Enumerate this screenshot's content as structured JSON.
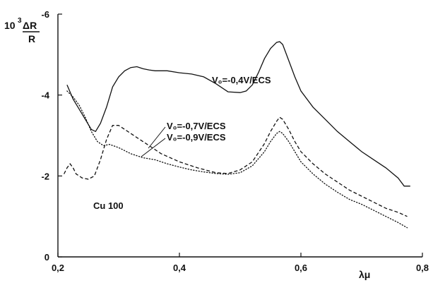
{
  "chart_data": {
    "type": "line",
    "xlabel": "λμ",
    "ylabel_prefix": "10",
    "ylabel_exp": "3",
    "ylabel_num": "ΔR",
    "ylabel_den": "R",
    "xlim": [
      0.2,
      0.8
    ],
    "ylim": [
      0,
      -6
    ],
    "x_ticks": [
      {
        "value": 0.2,
        "label": "0,2"
      },
      {
        "value": 0.4,
        "label": "0,4"
      },
      {
        "value": 0.6,
        "label": "0,6"
      },
      {
        "value": 0.8,
        "label": "0,8"
      }
    ],
    "y_ticks": [
      {
        "value": 0,
        "label": "0"
      },
      {
        "value": -2,
        "label": "-2"
      },
      {
        "value": -4,
        "label": "-4"
      },
      {
        "value": -6,
        "label": "-6"
      }
    ],
    "annotations": {
      "sample": "Cu 100",
      "v04": "V₀=-0,4V/ECS",
      "v07": "V₀=-0,7V/ECS",
      "v09": "V₀=-0,9V/ECS"
    },
    "series": [
      {
        "style": "solid",
        "points": [
          [
            0.215,
            -4.25
          ],
          [
            0.225,
            -3.9
          ],
          [
            0.235,
            -3.65
          ],
          [
            0.245,
            -3.4
          ],
          [
            0.255,
            -3.15
          ],
          [
            0.262,
            -3.1
          ],
          [
            0.27,
            -3.3
          ],
          [
            0.28,
            -3.7
          ],
          [
            0.29,
            -4.2
          ],
          [
            0.3,
            -4.45
          ],
          [
            0.31,
            -4.6
          ],
          [
            0.32,
            -4.68
          ],
          [
            0.33,
            -4.7
          ],
          [
            0.34,
            -4.65
          ],
          [
            0.35,
            -4.62
          ],
          [
            0.36,
            -4.6
          ],
          [
            0.38,
            -4.6
          ],
          [
            0.4,
            -4.55
          ],
          [
            0.42,
            -4.52
          ],
          [
            0.44,
            -4.45
          ],
          [
            0.46,
            -4.28
          ],
          [
            0.48,
            -4.08
          ],
          [
            0.5,
            -4.06
          ],
          [
            0.51,
            -4.1
          ],
          [
            0.52,
            -4.25
          ],
          [
            0.53,
            -4.55
          ],
          [
            0.54,
            -4.9
          ],
          [
            0.55,
            -5.15
          ],
          [
            0.56,
            -5.3
          ],
          [
            0.565,
            -5.32
          ],
          [
            0.57,
            -5.25
          ],
          [
            0.58,
            -4.85
          ],
          [
            0.59,
            -4.45
          ],
          [
            0.6,
            -4.1
          ],
          [
            0.62,
            -3.7
          ],
          [
            0.64,
            -3.4
          ],
          [
            0.66,
            -3.1
          ],
          [
            0.68,
            -2.85
          ],
          [
            0.7,
            -2.6
          ],
          [
            0.72,
            -2.4
          ],
          [
            0.74,
            -2.2
          ],
          [
            0.76,
            -1.95
          ],
          [
            0.77,
            -1.75
          ],
          [
            0.78,
            -1.75
          ]
        ]
      },
      {
        "style": "dashed",
        "points": [
          [
            0.21,
            -2.05
          ],
          [
            0.215,
            -2.2
          ],
          [
            0.22,
            -2.3
          ],
          [
            0.225,
            -2.2
          ],
          [
            0.23,
            -2.05
          ],
          [
            0.24,
            -1.95
          ],
          [
            0.25,
            -1.92
          ],
          [
            0.26,
            -2.0
          ],
          [
            0.27,
            -2.4
          ],
          [
            0.28,
            -2.9
          ],
          [
            0.29,
            -3.25
          ],
          [
            0.3,
            -3.25
          ],
          [
            0.31,
            -3.15
          ],
          [
            0.33,
            -2.95
          ],
          [
            0.35,
            -2.75
          ],
          [
            0.37,
            -2.55
          ],
          [
            0.4,
            -2.35
          ],
          [
            0.43,
            -2.2
          ],
          [
            0.46,
            -2.08
          ],
          [
            0.48,
            -2.06
          ],
          [
            0.5,
            -2.15
          ],
          [
            0.52,
            -2.35
          ],
          [
            0.54,
            -2.8
          ],
          [
            0.55,
            -3.1
          ],
          [
            0.56,
            -3.35
          ],
          [
            0.565,
            -3.45
          ],
          [
            0.57,
            -3.4
          ],
          [
            0.58,
            -3.15
          ],
          [
            0.59,
            -2.85
          ],
          [
            0.6,
            -2.6
          ],
          [
            0.62,
            -2.3
          ],
          [
            0.64,
            -2.05
          ],
          [
            0.66,
            -1.85
          ],
          [
            0.68,
            -1.65
          ],
          [
            0.7,
            -1.5
          ],
          [
            0.72,
            -1.35
          ],
          [
            0.74,
            -1.2
          ],
          [
            0.76,
            -1.1
          ],
          [
            0.775,
            -1.0
          ]
        ]
      },
      {
        "style": "dotted",
        "points": [
          [
            0.215,
            -4.1
          ],
          [
            0.225,
            -3.95
          ],
          [
            0.235,
            -3.75
          ],
          [
            0.245,
            -3.45
          ],
          [
            0.255,
            -3.1
          ],
          [
            0.265,
            -2.85
          ],
          [
            0.275,
            -2.75
          ],
          [
            0.285,
            -2.78
          ],
          [
            0.3,
            -2.7
          ],
          [
            0.32,
            -2.55
          ],
          [
            0.34,
            -2.45
          ],
          [
            0.36,
            -2.4
          ],
          [
            0.38,
            -2.3
          ],
          [
            0.4,
            -2.22
          ],
          [
            0.42,
            -2.15
          ],
          [
            0.44,
            -2.1
          ],
          [
            0.46,
            -2.06
          ],
          [
            0.48,
            -2.04
          ],
          [
            0.5,
            -2.08
          ],
          [
            0.52,
            -2.25
          ],
          [
            0.54,
            -2.6
          ],
          [
            0.55,
            -2.85
          ],
          [
            0.56,
            -3.05
          ],
          [
            0.565,
            -3.1
          ],
          [
            0.57,
            -3.05
          ],
          [
            0.58,
            -2.85
          ],
          [
            0.59,
            -2.6
          ],
          [
            0.6,
            -2.35
          ],
          [
            0.62,
            -2.05
          ],
          [
            0.64,
            -1.8
          ],
          [
            0.66,
            -1.6
          ],
          [
            0.68,
            -1.42
          ],
          [
            0.7,
            -1.3
          ],
          [
            0.72,
            -1.15
          ],
          [
            0.74,
            -1.0
          ],
          [
            0.76,
            -0.85
          ],
          [
            0.775,
            -0.72
          ]
        ]
      }
    ]
  }
}
